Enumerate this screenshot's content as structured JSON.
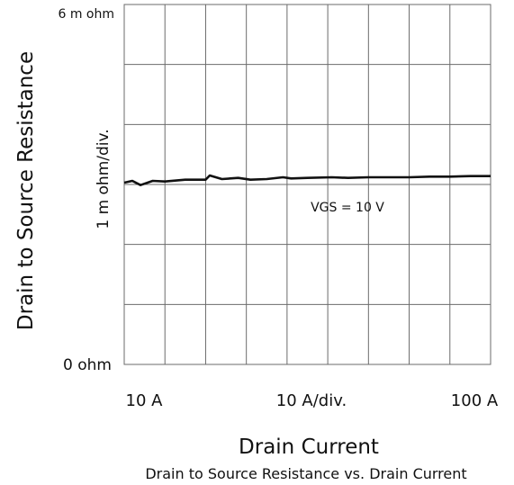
{
  "chart_data": {
    "type": "line",
    "title": "Drain to Source Resistance vs. Drain Current",
    "xlabel": "Drain Current",
    "ylabel": "Drain to Source Resistance",
    "y_scale_label": "1 m ohm/div.",
    "y_tick_labels": {
      "top": "6 m ohm",
      "bottom": "0  ohm"
    },
    "x_tick_labels": [
      "10  A",
      "10  A/div.",
      "100  A"
    ],
    "annotation": "VGS = 10 V",
    "xlim": [
      10,
      100
    ],
    "ylim": [
      0,
      6
    ],
    "grid": true,
    "series": [
      {
        "x": [
          10,
          12,
          14,
          17,
          20,
          25,
          30,
          31,
          34,
          38,
          41,
          45,
          49,
          51,
          55,
          61,
          65,
          70,
          75,
          80,
          85,
          90,
          95,
          100
        ],
        "y": [
          3.03,
          3.06,
          2.99,
          3.06,
          3.05,
          3.08,
          3.08,
          3.15,
          3.09,
          3.11,
          3.08,
          3.09,
          3.12,
          3.1,
          3.11,
          3.12,
          3.11,
          3.12,
          3.12,
          3.12,
          3.13,
          3.13,
          3.14,
          3.14
        ]
      }
    ]
  }
}
